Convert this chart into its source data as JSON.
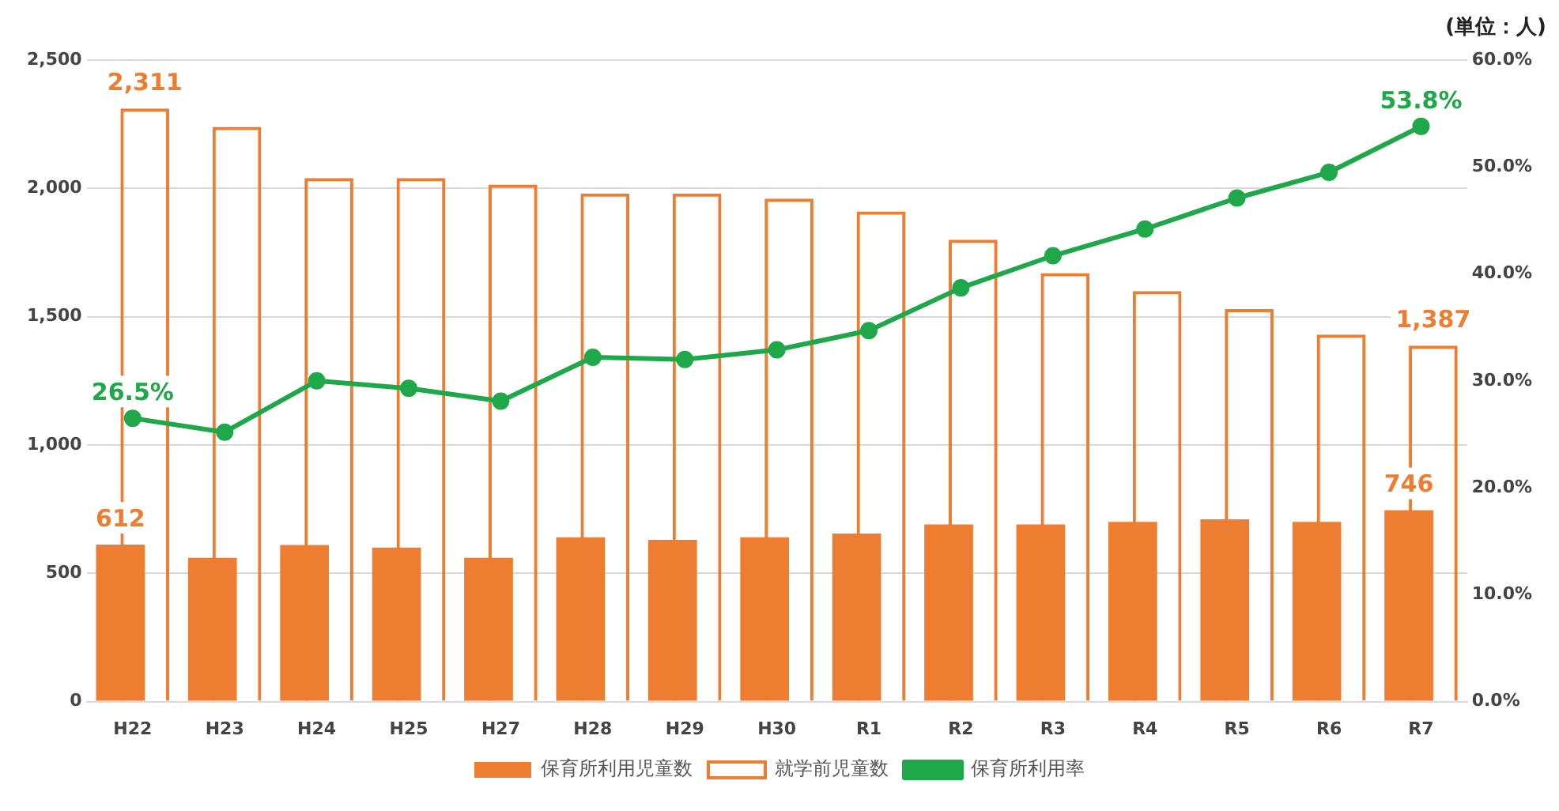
{
  "chart_data": {
    "type": "bar",
    "annotations": [
      "(単位：人)"
    ],
    "categories": [
      "H22",
      "H23",
      "H24",
      "H25",
      "H27",
      "H28",
      "H29",
      "H30",
      "R1",
      "R2",
      "R3",
      "R4",
      "R5",
      "R6",
      "R7"
    ],
    "series": [
      {
        "name": "保育所利用児童数",
        "color": "#ed7d31",
        "values": [
          612,
          560,
          610,
          600,
          560,
          640,
          630,
          640,
          655,
          690,
          690,
          700,
          710,
          700,
          746
        ],
        "value_labels": [
          "612",
          null,
          null,
          null,
          null,
          null,
          null,
          null,
          null,
          null,
          null,
          null,
          null,
          null,
          "746"
        ]
      },
      {
        "name": "就学前児童数",
        "color": "#ed7d31",
        "values": [
          2311,
          2240,
          2040,
          2040,
          2015,
          1980,
          1980,
          1960,
          1910,
          1800,
          1670,
          1600,
          1530,
          1430,
          1387
        ],
        "value_labels": [
          "2,311",
          null,
          null,
          null,
          null,
          null,
          null,
          null,
          null,
          null,
          null,
          null,
          null,
          null,
          "1,387"
        ]
      },
      {
        "name": "保育所利用率",
        "type": "line",
        "axis": "y2",
        "color": "#1ea84a",
        "values": [
          26.5,
          25.2,
          30.0,
          29.3,
          28.1,
          32.2,
          32.0,
          32.9,
          34.7,
          38.7,
          41.7,
          44.2,
          47.1,
          49.5,
          53.8
        ],
        "value_labels": [
          "26.5%",
          null,
          null,
          null,
          null,
          null,
          null,
          null,
          null,
          null,
          null,
          null,
          null,
          null,
          "53.8%"
        ]
      }
    ],
    "ylim": [
      0,
      2500
    ],
    "yticks": [
      {
        "value": 0,
        "label": "0"
      },
      {
        "value": 500,
        "label": "500"
      },
      {
        "value": 1000,
        "label": "1,000"
      },
      {
        "value": 1500,
        "label": "1,500"
      },
      {
        "value": 2000,
        "label": "2,000"
      },
      {
        "value": 2500,
        "label": "2,500"
      }
    ],
    "y2lim": [
      0,
      60
    ],
    "y2ticks": [
      {
        "value": 0,
        "label": "0.0%"
      },
      {
        "value": 10,
        "label": "10.0%"
      },
      {
        "value": 20,
        "label": "20.0%"
      },
      {
        "value": 30,
        "label": "30.0%"
      },
      {
        "value": 40,
        "label": "40.0%"
      },
      {
        "value": 50,
        "label": "50.0%"
      },
      {
        "value": 60,
        "label": "60.0%"
      }
    ],
    "grid": "y",
    "legend": "bottom",
    "marker": "circle",
    "line_style": "solid"
  }
}
